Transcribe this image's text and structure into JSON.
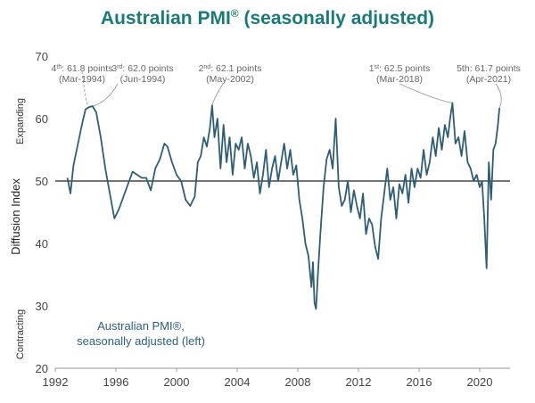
{
  "chart_data": {
    "type": "line",
    "title": "Australian PMI",
    "title_suffix": "(seasonally adjusted)",
    "title_mark": "®",
    "ylabel": "Diffusion Index",
    "y_top_label": "Expanding",
    "y_bottom_label": "Contracting",
    "ylim": [
      20,
      70
    ],
    "yticks": [
      20,
      30,
      40,
      50,
      60,
      70
    ],
    "xlim": [
      1992,
      2022
    ],
    "xticks": [
      1992,
      1996,
      2000,
      2004,
      2008,
      2012,
      2016,
      2020
    ],
    "reference_line": 50,
    "legend": {
      "line1": "Australian PMI®,",
      "line2": "seasonally adjusted (left)"
    },
    "color": "#2e5d76",
    "annotations": [
      {
        "rank": "4",
        "sup": "th",
        "points": ": 61.8 points",
        "date": "(Mar-1994)",
        "x": 1994.2,
        "y": 61.8
      },
      {
        "rank": "3",
        "sup": "rd",
        "points": ": 62.0 points",
        "date": "(Jun-1994)",
        "x": 1994.45,
        "y": 62.0
      },
      {
        "rank": "2",
        "sup": "nd",
        "points": ": 62.1 points",
        "date": "(May-2002)",
        "x": 2002.35,
        "y": 62.1
      },
      {
        "rank": "1",
        "sup": "st",
        "points": ": 62.5 points",
        "date": "(Mar-2018)",
        "x": 2018.2,
        "y": 62.5
      },
      {
        "rank": "5th",
        "sup": "",
        "points": ": 61.7 points",
        "date": "(Apr-2021)",
        "x": 2021.3,
        "y": 61.7
      }
    ],
    "series": [
      {
        "name": "Australian PMI, seasonally adjusted",
        "x": [
          1992.8,
          1993.0,
          1993.2,
          1993.5,
          1993.8,
          1994.0,
          1994.2,
          1994.45,
          1994.7,
          1995.0,
          1995.3,
          1995.6,
          1995.9,
          1996.2,
          1996.5,
          1996.8,
          1997.1,
          1997.4,
          1997.7,
          1998.0,
          1998.3,
          1998.6,
          1998.9,
          1999.2,
          1999.4,
          1999.7,
          2000.0,
          2000.3,
          2000.6,
          2000.9,
          2001.2,
          2001.4,
          2001.6,
          2001.8,
          2002.0,
          2002.2,
          2002.35,
          2002.5,
          2002.7,
          2002.9,
          2003.1,
          2003.3,
          2003.5,
          2003.7,
          2003.9,
          2004.1,
          2004.3,
          2004.5,
          2004.7,
          2004.9,
          2005.1,
          2005.3,
          2005.5,
          2005.7,
          2005.9,
          2006.1,
          2006.3,
          2006.5,
          2006.7,
          2006.9,
          2007.1,
          2007.3,
          2007.5,
          2007.7,
          2007.9,
          2008.1,
          2008.3,
          2008.5,
          2008.7,
          2008.9,
          2009.0,
          2009.1,
          2009.2,
          2009.35,
          2009.5,
          2009.7,
          2009.9,
          2010.1,
          2010.3,
          2010.5,
          2010.7,
          2010.9,
          2011.1,
          2011.3,
          2011.5,
          2011.7,
          2011.9,
          2012.1,
          2012.3,
          2012.5,
          2012.7,
          2012.9,
          2013.1,
          2013.3,
          2013.5,
          2013.7,
          2013.9,
          2014.1,
          2014.3,
          2014.5,
          2014.7,
          2014.9,
          2015.1,
          2015.3,
          2015.5,
          2015.7,
          2015.9,
          2016.1,
          2016.3,
          2016.5,
          2016.7,
          2016.9,
          2017.1,
          2017.3,
          2017.5,
          2017.7,
          2017.9,
          2018.05,
          2018.2,
          2018.4,
          2018.6,
          2018.8,
          2019.0,
          2019.2,
          2019.4,
          2019.6,
          2019.8,
          2020.0,
          2020.15,
          2020.3,
          2020.45,
          2020.6,
          2020.75,
          2020.9,
          2021.05,
          2021.2,
          2021.3
        ],
        "values": [
          50.5,
          48.0,
          52.5,
          56.0,
          59.5,
          61.5,
          61.8,
          62.0,
          61.0,
          57.0,
          52.0,
          48.0,
          44.0,
          45.5,
          47.5,
          49.5,
          51.5,
          51.0,
          50.5,
          50.5,
          48.5,
          52.0,
          53.5,
          56.0,
          55.5,
          53.0,
          51.0,
          50.0,
          47.0,
          46.0,
          47.5,
          53.0,
          54.0,
          57.0,
          55.5,
          58.5,
          62.1,
          57.0,
          60.0,
          52.0,
          59.0,
          53.0,
          57.0,
          51.0,
          56.0,
          55.0,
          57.0,
          52.0,
          56.0,
          54.0,
          50.5,
          53.0,
          48.0,
          51.0,
          55.0,
          49.0,
          52.0,
          54.0,
          50.0,
          53.0,
          56.0,
          52.0,
          55.0,
          51.0,
          52.5,
          47.0,
          44.0,
          40.0,
          38.0,
          33.0,
          37.0,
          30.5,
          29.5,
          36.0,
          42.0,
          49.0,
          53.5,
          55.0,
          52.0,
          60.0,
          49.0,
          46.0,
          47.0,
          50.0,
          45.0,
          48.5,
          46.0,
          44.0,
          48.0,
          41.5,
          44.0,
          43.0,
          39.5,
          37.5,
          44.0,
          48.0,
          52.0,
          47.0,
          49.0,
          44.0,
          49.5,
          48.0,
          51.0,
          46.5,
          52.0,
          49.0,
          52.0,
          50.5,
          55.0,
          51.0,
          53.0,
          57.0,
          54.0,
          58.5,
          55.0,
          59.0,
          57.0,
          60.0,
          62.5,
          56.0,
          57.0,
          54.0,
          58.0,
          53.0,
          52.0,
          50.0,
          51.0,
          49.0,
          50.0,
          44.0,
          36.0,
          53.0,
          47.0,
          55.0,
          56.0,
          59.0,
          61.7
        ]
      }
    ]
  }
}
